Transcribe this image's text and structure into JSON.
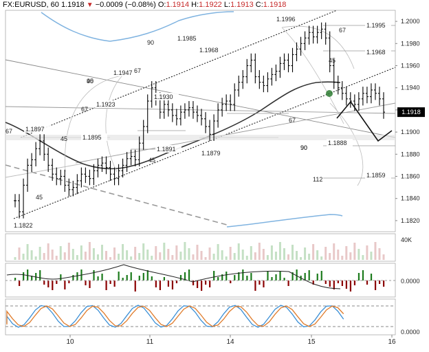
{
  "header": {
    "symbol": "FX:EURUSD, 60",
    "last": "1.1918",
    "change": "−0.0009 (−0.08%)",
    "o_label": "O:",
    "o": "1.1914",
    "h_label": "H:",
    "h": "1.1922",
    "l_label": "L:",
    "l": "1.1913",
    "c_label": "C:",
    "c": "1.1918"
  },
  "colors": {
    "up": "#1b7a1b",
    "down": "#8b0000",
    "price_bar": "#000000",
    "ma": "#333333",
    "band": "#7fb3e0",
    "fib": "#999999",
    "current_price_bg": "#000000",
    "stoch_k": "#3a8fd6",
    "stoch_d": "#e07b2a"
  },
  "chart_data": {
    "type": "candlestick",
    "symbol": "FX:EURUSD",
    "timeframe": "60",
    "ylim": [
      1.181,
      1.201
    ],
    "y_ticks": [
      "1.2000",
      "1.1980",
      "1.1960",
      "1.1940",
      "1.1920",
      "1.1900",
      "1.1880",
      "1.1860",
      "1.1840",
      "1.1820"
    ],
    "x_ticks": [
      "10",
      "11",
      "14",
      "15",
      "16"
    ],
    "current_price": "1.1918",
    "price_levels": [
      {
        "label": "1.1996"
      },
      {
        "label": "1.1985"
      },
      {
        "label": "1.1968"
      },
      {
        "label": "1.1947"
      },
      {
        "label": "1.1930"
      },
      {
        "label": "1.1923"
      },
      {
        "label": "1.1897"
      },
      {
        "label": "1.1895"
      },
      {
        "label": "1.1891"
      },
      {
        "label": "1.1879"
      },
      {
        "label": "1.1822"
      },
      {
        "label": "1.1995"
      },
      {
        "label": "1.1968"
      },
      {
        "label": "1.1888"
      },
      {
        "label": "1.1859"
      }
    ],
    "angle_labels": [
      "90",
      "67",
      "45",
      "90",
      "67",
      "67",
      "45",
      "45",
      "90",
      "67",
      "45",
      "67",
      "45",
      "90",
      "112"
    ],
    "bars_close": [
      1.1838,
      1.1828,
      1.1852,
      1.187,
      1.1875,
      1.1885,
      1.1892,
      1.188,
      1.187,
      1.1862,
      1.1858,
      1.186,
      1.1852,
      1.1848,
      1.185,
      1.1856,
      1.1862,
      1.186,
      1.1858,
      1.1865,
      1.187,
      1.1872,
      1.1868,
      1.1862,
      1.1858,
      1.1865,
      1.187,
      1.1876,
      1.1878,
      1.1875,
      1.189,
      1.1905,
      1.1928,
      1.194,
      1.193,
      1.1918,
      1.1925,
      1.192,
      1.1915,
      1.1912,
      1.1918,
      1.192,
      1.1922,
      1.1918,
      1.1915,
      1.1912,
      1.1905,
      1.1898,
      1.191,
      1.192,
      1.1925,
      1.1928,
      1.1925,
      1.1938,
      1.1945,
      1.195,
      1.196,
      1.1965,
      1.195,
      1.1945,
      1.1942,
      1.1948,
      1.1952,
      1.1955,
      1.1962,
      1.1965,
      1.196,
      1.197,
      1.1975,
      1.198,
      1.1985,
      1.199,
      1.1986,
      1.199,
      1.1993,
      1.1985,
      1.196,
      1.1945,
      1.194,
      1.1935,
      1.193,
      1.1928,
      1.1925,
      1.193,
      1.1935,
      1.1932,
      1.1938,
      1.1935,
      1.193,
      1.1918
    ],
    "volume_ylabel": "40K",
    "macd_ylabel": "0.0000",
    "stoch_ylabel": "0.0000"
  }
}
